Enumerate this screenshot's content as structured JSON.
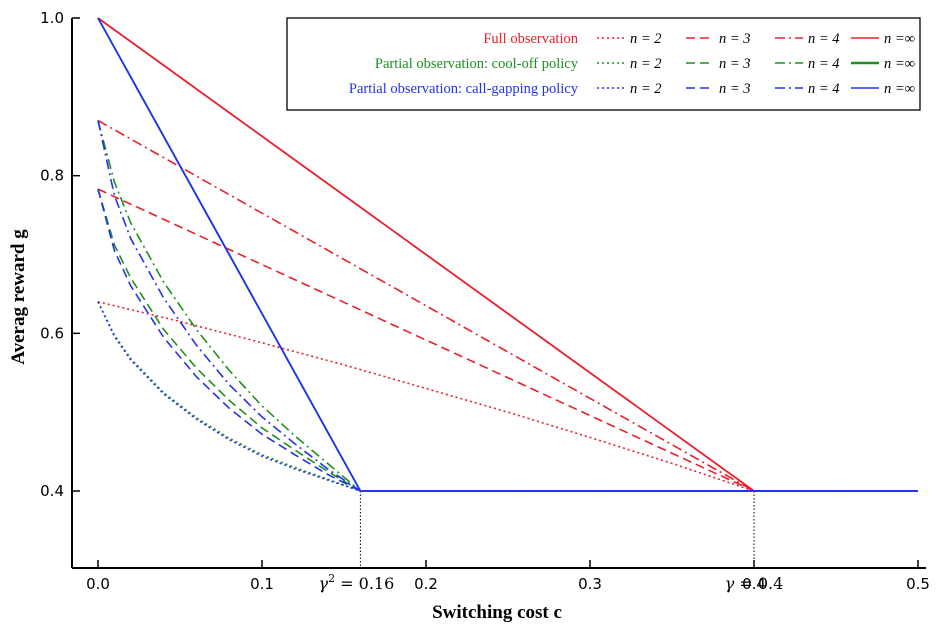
{
  "chart_data": {
    "type": "line",
    "xlabel": "Switching cost c",
    "ylabel": "Averag reward g",
    "xlim": [
      -0.015,
      0.51
    ],
    "ylim": [
      0.3,
      1.0
    ],
    "xticks": [
      0.0,
      0.1,
      0.2,
      0.3,
      0.4,
      0.5
    ],
    "xtick_labels": [
      "0.0",
      "0.1",
      "0.2",
      "0.3",
      "0.4",
      "0.5"
    ],
    "yticks": [
      0.4,
      0.6,
      0.8,
      1.0
    ],
    "ytick_labels": [
      "0.4",
      "0.6",
      "0.8",
      "1.0"
    ],
    "annotations": [
      {
        "x": 0.16,
        "label_math": "γ",
        "label_sup": "2",
        "label_rest": " = 0.16"
      },
      {
        "x": 0.4,
        "label_math": "γ",
        "label_sup": "",
        "label_rest": " = 0.4"
      }
    ],
    "legend_placement": "top-right",
    "legend_groups": [
      {
        "label": "Full observation",
        "color": "#e8202a"
      },
      {
        "label": "Partial observation: cool-off policy",
        "color": "#1f8f1f"
      },
      {
        "label": "Partial observation: call-gapping policy",
        "color": "#2233ee"
      }
    ],
    "legend_n_labels": [
      "n = 2",
      "n = 3",
      "n = 4",
      "n =∞"
    ],
    "series": [
      {
        "name": "Full observation, n = 2",
        "group": 0,
        "style": "dotted",
        "x": [
          0,
          0.05,
          0.1,
          0.15,
          0.2,
          0.25,
          0.3,
          0.35,
          0.4,
          0.5
        ],
        "y": [
          0.64,
          0.615,
          0.588,
          0.56,
          0.53,
          0.5,
          0.468,
          0.435,
          0.4,
          0.4
        ]
      },
      {
        "name": "Full observation, n = 3",
        "group": 0,
        "style": "dashed",
        "x": [
          0,
          0.4,
          0.5
        ],
        "y": [
          0.783,
          0.4,
          0.4
        ]
      },
      {
        "name": "Full observation, n = 4",
        "group": 0,
        "style": "dashdot",
        "x": [
          0,
          0.4,
          0.5
        ],
        "y": [
          0.87,
          0.4,
          0.4
        ]
      },
      {
        "name": "Full observation, n =∞",
        "group": 0,
        "style": "solid",
        "x": [
          0,
          0.4,
          0.5
        ],
        "y": [
          1.0,
          0.4,
          0.4
        ]
      },
      {
        "name": "Partial observation: cool-off policy, n = 2",
        "group": 1,
        "style": "dotted",
        "x": [
          0,
          0.01,
          0.02,
          0.04,
          0.06,
          0.08,
          0.1,
          0.12,
          0.14,
          0.16,
          0.5
        ],
        "y": [
          0.64,
          0.598,
          0.568,
          0.525,
          0.493,
          0.467,
          0.446,
          0.43,
          0.415,
          0.4,
          0.4
        ]
      },
      {
        "name": "Partial observation: cool-off policy, n = 3",
        "group": 1,
        "style": "dashed",
        "x": [
          0,
          0.01,
          0.02,
          0.04,
          0.06,
          0.08,
          0.1,
          0.12,
          0.14,
          0.16,
          0.5
        ],
        "y": [
          0.783,
          0.712,
          0.67,
          0.605,
          0.556,
          0.515,
          0.48,
          0.452,
          0.425,
          0.4,
          0.4
        ]
      },
      {
        "name": "Partial observation: cool-off policy, n = 4",
        "group": 1,
        "style": "dashdot",
        "x": [
          0,
          0.01,
          0.02,
          0.04,
          0.06,
          0.08,
          0.1,
          0.12,
          0.14,
          0.16,
          0.5
        ],
        "y": [
          0.87,
          0.792,
          0.74,
          0.665,
          0.605,
          0.553,
          0.508,
          0.47,
          0.435,
          0.4,
          0.4
        ]
      },
      {
        "name": "Partial observation: cool-off policy, n =∞",
        "group": 1,
        "style": "solid",
        "x": [
          0,
          0.16,
          0.5
        ],
        "y": [
          1.0,
          0.4,
          0.4
        ]
      },
      {
        "name": "Partial observation: call-gapping policy, n = 2",
        "group": 2,
        "style": "dotted",
        "x": [
          0,
          0.01,
          0.02,
          0.04,
          0.06,
          0.08,
          0.1,
          0.12,
          0.14,
          0.16,
          0.5
        ],
        "y": [
          0.64,
          0.596,
          0.566,
          0.523,
          0.491,
          0.465,
          0.444,
          0.428,
          0.414,
          0.4,
          0.4
        ]
      },
      {
        "name": "Partial observation: call-gapping policy, n = 3",
        "group": 2,
        "style": "dashed",
        "x": [
          0,
          0.01,
          0.02,
          0.04,
          0.06,
          0.08,
          0.1,
          0.12,
          0.14,
          0.16,
          0.5
        ],
        "y": [
          0.783,
          0.705,
          0.66,
          0.595,
          0.545,
          0.505,
          0.472,
          0.446,
          0.421,
          0.4,
          0.4
        ]
      },
      {
        "name": "Partial observation: call-gapping policy, n = 4",
        "group": 2,
        "style": "dashdot",
        "x": [
          0,
          0.01,
          0.02,
          0.04,
          0.06,
          0.08,
          0.1,
          0.12,
          0.14,
          0.16,
          0.5
        ],
        "y": [
          0.87,
          0.775,
          0.72,
          0.645,
          0.585,
          0.535,
          0.494,
          0.46,
          0.428,
          0.4,
          0.4
        ]
      },
      {
        "name": "Partial observation: call-gapping policy, n =∞",
        "group": 2,
        "style": "solid",
        "x": [
          0,
          0.16,
          0.5
        ],
        "y": [
          1.0,
          0.4,
          0.4
        ]
      }
    ]
  }
}
